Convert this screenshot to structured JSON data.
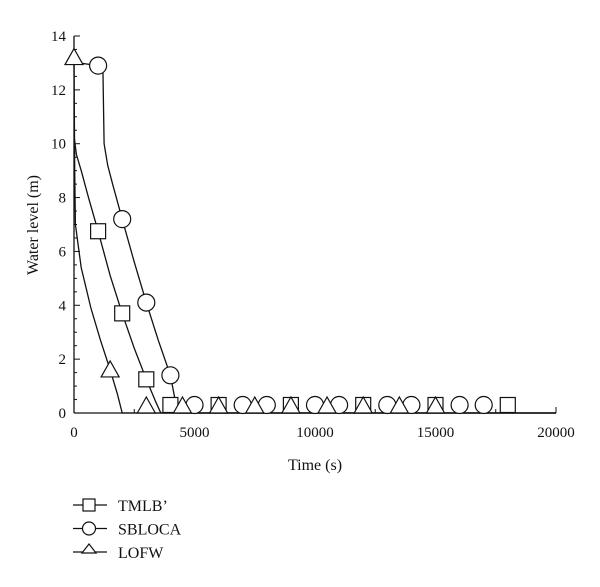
{
  "chart_data": {
    "type": "line",
    "title": "",
    "xlabel": "Time (s)",
    "ylabel": "Water level (m)",
    "xlim": [
      0,
      20000
    ],
    "ylim": [
      0,
      14
    ],
    "xticks": [
      0,
      5000,
      10000,
      15000,
      20000
    ],
    "yticks": [
      0,
      2,
      4,
      6,
      8,
      10,
      12,
      14
    ],
    "grid": false,
    "legend_position": "bottom-left",
    "series": [
      {
        "name": "TMLB’",
        "marker": "square",
        "x": [
          0,
          100,
          300,
          600,
          1000,
          1500,
          2000,
          2500,
          3000,
          3400,
          3600,
          20000
        ],
        "y": [
          10.3,
          9.6,
          9.0,
          8.0,
          6.75,
          5.1,
          3.7,
          2.4,
          1.25,
          0.4,
          0,
          0
        ],
        "markers_x": [
          1000,
          2000,
          3000,
          4000,
          6000,
          9000,
          12000,
          15000,
          18000
        ],
        "markers_y": [
          6.75,
          3.7,
          1.25,
          0,
          0,
          0,
          0,
          0,
          0
        ]
      },
      {
        "name": "SBLOCA",
        "marker": "circle",
        "x": [
          0,
          200,
          1000,
          1200,
          1250,
          1400,
          1600,
          2000,
          2500,
          3000,
          3500,
          4000,
          4300,
          20000
        ],
        "y": [
          13.3,
          13.0,
          12.9,
          12.8,
          10.0,
          9.2,
          8.5,
          7.2,
          5.6,
          4.1,
          2.7,
          1.4,
          0,
          0
        ],
        "markers_x": [
          1000,
          2000,
          3000,
          4000,
          5000,
          7000,
          8000,
          10000,
          11000,
          13000,
          14000,
          16000,
          17000
        ],
        "markers_y": [
          12.9,
          7.2,
          4.1,
          1.4,
          0,
          0,
          0,
          0,
          0,
          0,
          0,
          0,
          0
        ]
      },
      {
        "name": "LOFW",
        "marker": "triangle",
        "x": [
          0,
          30,
          60,
          300,
          700,
          1100,
          1500,
          1800,
          2000,
          20000
        ],
        "y": [
          13.2,
          9.0,
          7.0,
          5.4,
          3.9,
          2.7,
          1.6,
          0.7,
          0,
          0
        ],
        "markers_x": [
          0,
          1500,
          3000,
          4500,
          6000,
          7500,
          9000,
          10500,
          12000,
          13500,
          15000
        ],
        "markers_y": [
          13.2,
          1.6,
          0,
          0,
          0,
          0,
          0,
          0,
          0,
          0,
          0
        ]
      }
    ]
  }
}
